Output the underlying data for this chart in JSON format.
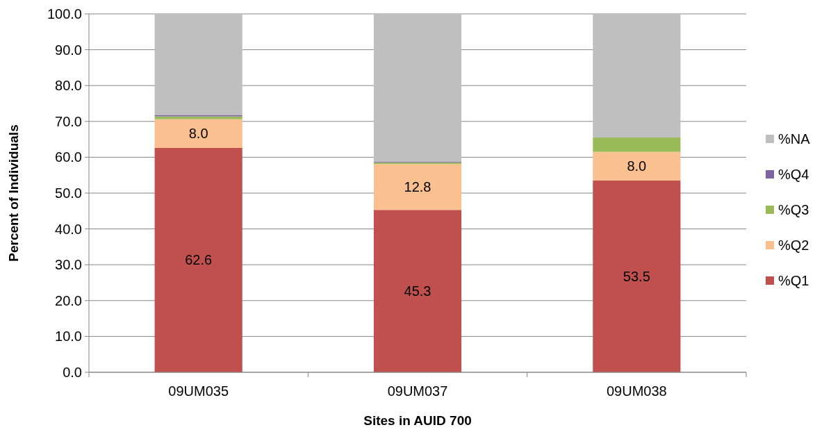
{
  "chart_data": {
    "type": "bar",
    "stacked": true,
    "xlabel": "Sites in AUID 700",
    "ylabel": "Percent of Individuals",
    "categories": [
      "09UM035",
      "09UM037",
      "09UM038"
    ],
    "series": [
      {
        "name": "%Q1",
        "color": "#c0504d",
        "values": [
          62.6,
          45.3,
          53.5
        ],
        "value_labels": [
          "62.6",
          "45.3",
          "53.5"
        ]
      },
      {
        "name": "%Q2",
        "color": "#fac090",
        "values": [
          8.0,
          12.8,
          8.0
        ],
        "value_labels": [
          "8.0",
          "12.8",
          "8.0"
        ]
      },
      {
        "name": "%Q3",
        "color": "#9bbb59",
        "values": [
          0.8,
          0.4,
          4.0
        ]
      },
      {
        "name": "%Q4",
        "color": "#8064a2",
        "values": [
          0.4,
          0.2,
          0
        ]
      },
      {
        "name": "%NA",
        "color": "#bfbfbf",
        "values": [
          28.2,
          41.3,
          34.5
        ]
      }
    ],
    "ylim": [
      0,
      100
    ],
    "yticks": [
      {
        "value": 0,
        "label": "0.0"
      },
      {
        "value": 10,
        "label": "10.0"
      },
      {
        "value": 20,
        "label": "20.0"
      },
      {
        "value": 30,
        "label": "30.0"
      },
      {
        "value": 40,
        "label": "40.0"
      },
      {
        "value": 50,
        "label": "50.0"
      },
      {
        "value": 60,
        "label": "60.0"
      },
      {
        "value": 70,
        "label": "70.0"
      },
      {
        "value": 80,
        "label": "80.0"
      },
      {
        "value": 90,
        "label": "90.0"
      },
      {
        "value": 100,
        "label": "100.0"
      }
    ],
    "grid": "y",
    "legend": "right"
  }
}
